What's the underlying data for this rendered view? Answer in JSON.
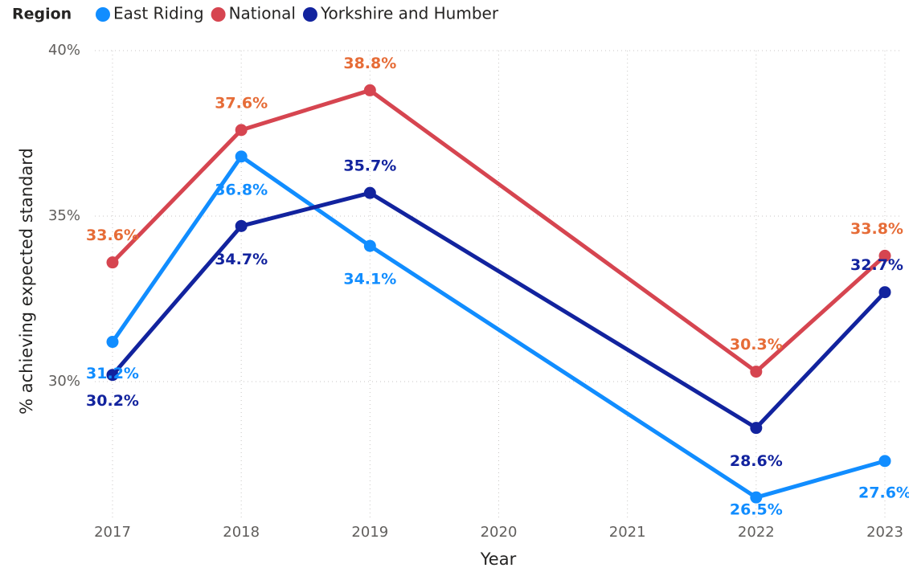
{
  "chart_data": {
    "type": "line",
    "legend_title": "Region",
    "x_label": "Year",
    "y_label": "% achieving expected standard",
    "x": [
      2017,
      2018,
      2019,
      2022,
      2023
    ],
    "xlim": [
      2017,
      2023
    ],
    "xticks": [
      2017,
      2018,
      2019,
      2020,
      2021,
      2022,
      2023
    ],
    "ylim": [
      25.8,
      40
    ],
    "yticks": [
      {
        "value": 30,
        "label": "30%"
      },
      {
        "value": 35,
        "label": "35%"
      },
      {
        "value": 40,
        "label": "40%"
      }
    ],
    "grid": true,
    "series": [
      {
        "name": "East Riding",
        "color": "#118dff",
        "label_color": "#118dff",
        "values": [
          31.2,
          36.8,
          34.1,
          26.5,
          27.6
        ],
        "value_labels": [
          "31.2%",
          "36.8%",
          "34.1%",
          "26.5%",
          "27.6%"
        ]
      },
      {
        "name": "National",
        "color": "#d64550",
        "label_color": "#e66c37",
        "values": [
          33.6,
          37.6,
          38.8,
          30.3,
          33.8
        ],
        "value_labels": [
          "33.6%",
          "37.6%",
          "38.8%",
          "30.3%",
          "33.8%"
        ]
      },
      {
        "name": "Yorkshire and Humber",
        "color": "#12239e",
        "label_color": "#12239e",
        "values": [
          30.2,
          34.7,
          35.7,
          28.6,
          32.7
        ],
        "value_labels": [
          "30.2%",
          "34.7%",
          "35.7%",
          "28.6%",
          "32.7%"
        ]
      }
    ]
  }
}
